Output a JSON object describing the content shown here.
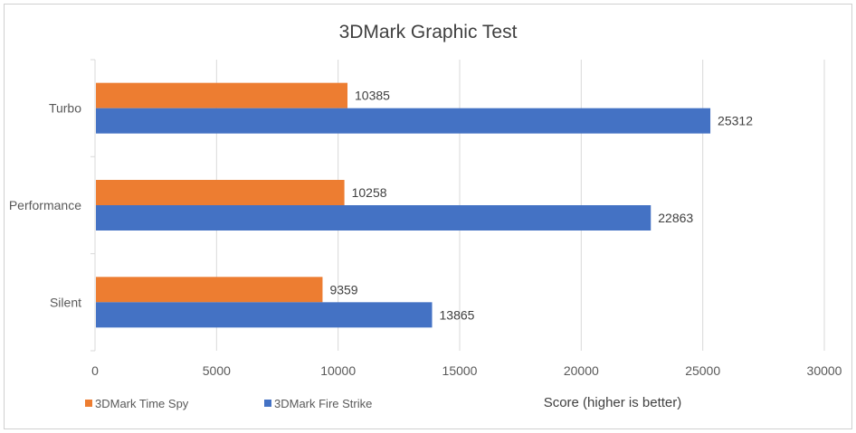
{
  "chart_data": {
    "type": "bar",
    "orientation": "horizontal",
    "title": "3DMark Graphic Test",
    "xlabel": "Score (higher is better)",
    "ylabel": "",
    "categories": [
      "Turbo",
      "Performance",
      "Silent"
    ],
    "series": [
      {
        "name": "3DMark Time Spy",
        "color": "#ED7D31",
        "values": [
          10385,
          10258,
          9359
        ]
      },
      {
        "name": "3DMark Fire Strike",
        "color": "#4472C4",
        "values": [
          25312,
          22863,
          13865
        ]
      }
    ],
    "xlim": [
      0,
      30000
    ],
    "xticks": [
      0,
      5000,
      10000,
      15000,
      20000,
      25000,
      30000
    ],
    "grid": true,
    "legend_position": "bottom-left"
  }
}
